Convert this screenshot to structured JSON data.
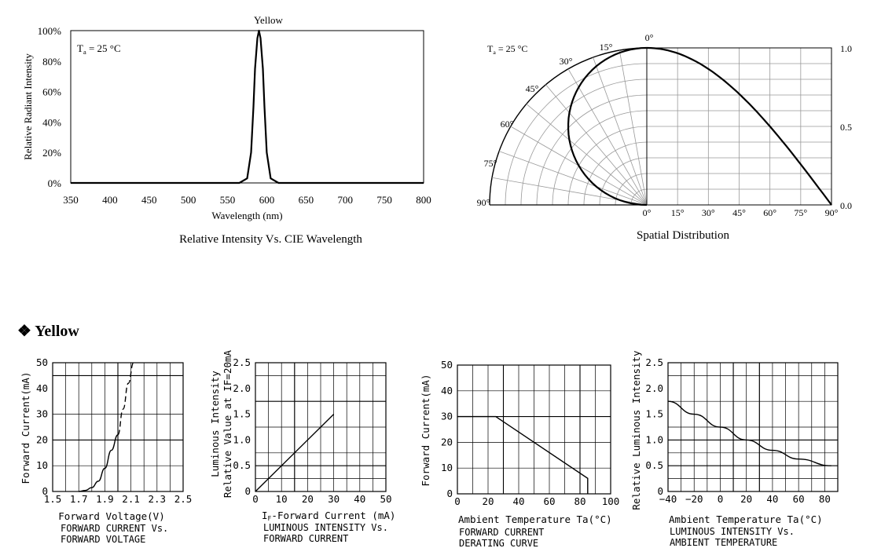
{
  "section_heading": "Yellow",
  "section_icon": "diamond-bullet-icon",
  "chart_data": [
    {
      "id": "spectrum",
      "type": "line",
      "title": "Yellow",
      "caption": "Relative Intensity Vs. CIE Wavelength",
      "xlabel": "Wavelength (nm)",
      "ylabel": "Relative Radiant Intensity",
      "annotation": {
        "text": "T",
        "sub": "a",
        "rest": " = 25 °C"
      },
      "xlim": [
        350,
        800
      ],
      "ylim": [
        0,
        100
      ],
      "xticks": [
        "350",
        "400",
        "450",
        "500",
        "550",
        "600",
        "650",
        "700",
        "750",
        "800"
      ],
      "yticks": [
        "0%",
        "20%",
        "40%",
        "60%",
        "80%",
        "100%"
      ],
      "grid": false,
      "series": [
        {
          "x": [
            350,
            565,
            575,
            580,
            583,
            585,
            588,
            590,
            592,
            595,
            597,
            600,
            605,
            615,
            800
          ],
          "y": [
            0,
            0,
            3,
            20,
            50,
            75,
            95,
            100,
            95,
            75,
            50,
            20,
            3,
            0,
            0
          ]
        }
      ]
    },
    {
      "id": "spatial",
      "type": "line",
      "caption": "Spatial Distribution",
      "annotation": {
        "text": "T",
        "sub": "a",
        "rest": " = 25 °C"
      },
      "polar_angle_labels": [
        "0°",
        "15°",
        "30°",
        "45°",
        "60°",
        "75°",
        "90°"
      ],
      "x_angle_labels": [
        "0°",
        "15°",
        "30°",
        "45°",
        "60°",
        "75°",
        "90°"
      ],
      "y_right_labels": [
        "1.0",
        "0.5",
        "0.0"
      ],
      "xlim": [
        0,
        90
      ],
      "ylim": [
        0,
        1
      ],
      "series": [
        {
          "x": [
            0,
            15,
            30,
            45,
            60,
            75,
            90
          ],
          "y": [
            1.0,
            0.966,
            0.866,
            0.707,
            0.5,
            0.259,
            0.0
          ]
        }
      ]
    },
    {
      "id": "iv",
      "type": "line",
      "xlabel": "Forward Voltage(V)",
      "ylabel": "Forward Current(mA)",
      "caption_lines": [
        "FORWARD CURRENT Vs.",
        "FORWARD VOLTAGE"
      ],
      "xlim": [
        1.5,
        2.5
      ],
      "ylim": [
        0,
        50
      ],
      "xticks": [
        "1.5",
        "1.7",
        "1.9",
        "2.1",
        "2.3",
        "2.5"
      ],
      "yticks": [
        "0",
        "10",
        "20",
        "30",
        "40",
        "50"
      ],
      "grid": true,
      "series": [
        {
          "style": "solid",
          "x": [
            1.7,
            1.75,
            1.8,
            1.85,
            1.9,
            1.95,
            2.0
          ],
          "y": [
            0,
            0.4,
            1.5,
            4,
            9,
            16,
            22
          ]
        },
        {
          "style": "dashed",
          "x": [
            2.0,
            2.04,
            2.08,
            2.12
          ],
          "y": [
            22,
            32,
            42,
            50
          ]
        }
      ]
    },
    {
      "id": "lum-current",
      "type": "line",
      "xlabel": "IF-Forward Current (mA)",
      "xlabel_parts": {
        "pre": "I",
        "sub": "F",
        "rest": "-Forward Current (mA)"
      },
      "ylabel_lines": [
        "Luminous Intensity",
        "Relative Value at IF=20mA"
      ],
      "caption_lines": [
        "LUMINOUS INTENSITY Vs.",
        "FORWARD CURRENT"
      ],
      "xlim": [
        0,
        50
      ],
      "ylim": [
        0,
        2.5
      ],
      "xticks": [
        "0",
        "10",
        "20",
        "30",
        "40",
        "50"
      ],
      "yticks": [
        "0",
        "0.5",
        "1.0",
        "1.5",
        "2.0",
        "2.5"
      ],
      "grid": true,
      "series": [
        {
          "x": [
            0,
            30
          ],
          "y": [
            0,
            1.5
          ]
        }
      ]
    },
    {
      "id": "derating",
      "type": "line",
      "xlabel": "Ambient Temperature Ta(°C)",
      "ylabel": "Forward Current(mA)",
      "caption_lines": [
        "FORWARD CURRENT",
        "DERATING CURVE"
      ],
      "xlim": [
        0,
        100
      ],
      "ylim": [
        0,
        50
      ],
      "xticks": [
        "0",
        "20",
        "40",
        "60",
        "80",
        "100"
      ],
      "yticks": [
        "0",
        "10",
        "20",
        "30",
        "40",
        "50"
      ],
      "grid": true,
      "series": [
        {
          "x": [
            0,
            25,
            85,
            85
          ],
          "y": [
            30,
            30,
            6,
            0
          ]
        }
      ]
    },
    {
      "id": "lum-temp",
      "type": "line",
      "xlabel": "Ambient Temperature Ta(°C)",
      "ylabel": "Relative Luminous Intensity",
      "caption_lines": [
        "LUMINOUS INTENSITY Vs.",
        "AMBIENT TEMPERATURE"
      ],
      "xlim": [
        -40,
        90
      ],
      "ylim": [
        0,
        2.5
      ],
      "xticks": [
        "-40",
        "-20",
        "0",
        "20",
        "40",
        "60",
        "80"
      ],
      "yticks": [
        "0",
        "0.5",
        "1.0",
        "1.5",
        "2.0",
        "2.5"
      ],
      "grid": true,
      "series": [
        {
          "x": [
            -40,
            -20,
            0,
            20,
            40,
            60,
            85
          ],
          "y": [
            1.75,
            1.5,
            1.25,
            1.0,
            0.8,
            0.63,
            0.5
          ]
        }
      ]
    }
  ]
}
